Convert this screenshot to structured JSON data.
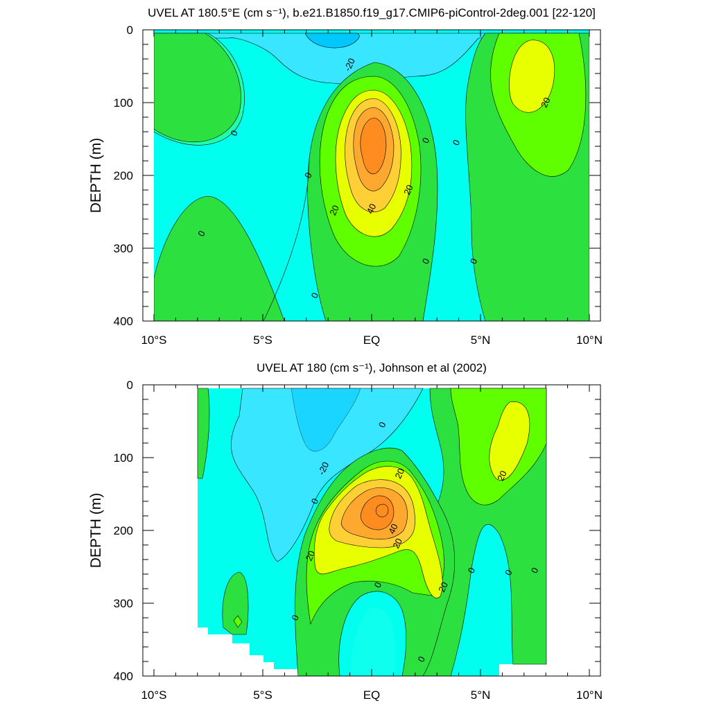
{
  "chart_data": [
    {
      "type": "contour",
      "title": "UVEL AT 180.5°E (cm s⁻¹), b.e21.B1850.f19_g17.CMIP6-piControl-2deg.001 [22-120]",
      "ylabel": "DEPTH (m)",
      "xlim": [
        -10,
        10
      ],
      "ylim": [
        0,
        400
      ],
      "y_reversed": true,
      "xticks": [
        -10,
        -5,
        0,
        5,
        10
      ],
      "xticklabels": [
        "10°S",
        "5°S",
        "EQ",
        "5°N",
        "10°N"
      ],
      "yticks": [
        0,
        100,
        200,
        300,
        400
      ],
      "yticklabels": [
        "0",
        "100",
        "200",
        "300",
        "400"
      ],
      "contour_levels": [
        -30,
        -20,
        -10,
        0,
        10,
        20,
        30,
        40,
        50
      ],
      "fill_colors": [
        "#00c8ff",
        "#39e6ff",
        "#00ffee",
        "#22ffaa",
        "#2be03f",
        "#60ff00",
        "#e8ff00",
        "#ffd036",
        "#ffa830",
        "#ff8c1e"
      ],
      "contour_labels": [
        {
          "text": "-20",
          "x": -1.0,
          "y": 48
        },
        {
          "text": "0",
          "x": -6.3,
          "y": 142
        },
        {
          "text": "20",
          "x": 8.0,
          "y": 100
        },
        {
          "text": "0",
          "x": 2.5,
          "y": 152
        },
        {
          "text": "0",
          "x": 3.9,
          "y": 155
        },
        {
          "text": "0",
          "x": -2.9,
          "y": 200
        },
        {
          "text": "20",
          "x": 1.7,
          "y": 220
        },
        {
          "text": "20",
          "x": -1.7,
          "y": 248
        },
        {
          "text": "40",
          "x": 0.0,
          "y": 246
        },
        {
          "text": "0",
          "x": -7.8,
          "y": 280
        },
        {
          "text": "0",
          "x": 2.5,
          "y": 318
        },
        {
          "text": "0",
          "x": 4.7,
          "y": 318
        },
        {
          "text": "0",
          "x": -2.6,
          "y": 365
        }
      ]
    },
    {
      "type": "contour",
      "title": "UVEL AT 180 (cm s⁻¹), Johnson et al (2002)",
      "ylabel": "DEPTH (m)",
      "xlim": [
        -10,
        10
      ],
      "ylim": [
        0,
        400
      ],
      "y_reversed": true,
      "data_x_range": [
        -8,
        8
      ],
      "xticks": [
        -10,
        -5,
        0,
        5,
        10
      ],
      "xticklabels": [
        "10°S",
        "5°S",
        "EQ",
        "5°N",
        "10°N"
      ],
      "yticks": [
        0,
        100,
        200,
        300,
        400
      ],
      "yticklabels": [
        "0",
        "100",
        "200",
        "300",
        "400"
      ],
      "contour_levels": [
        -30,
        -20,
        -10,
        0,
        10,
        20,
        30,
        40,
        50
      ],
      "fill_colors": [
        "#00c8ff",
        "#39e6ff",
        "#00ffee",
        "#22ffaa",
        "#2be03f",
        "#60ff00",
        "#e8ff00",
        "#ffd036",
        "#ffa830",
        "#ff8c1e"
      ],
      "contour_labels": [
        {
          "text": "0",
          "x": 0.5,
          "y": 55
        },
        {
          "text": "-20",
          "x": -2.2,
          "y": 115
        },
        {
          "text": "20",
          "x": 1.3,
          "y": 122
        },
        {
          "text": "20",
          "x": 6.0,
          "y": 125
        },
        {
          "text": "0",
          "x": -2.6,
          "y": 160
        },
        {
          "text": "40",
          "x": 1.0,
          "y": 198
        },
        {
          "text": "20",
          "x": 1.2,
          "y": 218
        },
        {
          "text": "20",
          "x": -2.8,
          "y": 235
        },
        {
          "text": "0",
          "x": 4.6,
          "y": 255
        },
        {
          "text": "0",
          "x": 6.3,
          "y": 258
        },
        {
          "text": "0",
          "x": 7.5,
          "y": 255
        },
        {
          "text": "0",
          "x": 0.3,
          "y": 275
        },
        {
          "text": "20",
          "x": 3.3,
          "y": 278
        },
        {
          "text": "0",
          "x": -3.5,
          "y": 320
        },
        {
          "text": "0",
          "x": 2.3,
          "y": 377
        }
      ]
    }
  ]
}
